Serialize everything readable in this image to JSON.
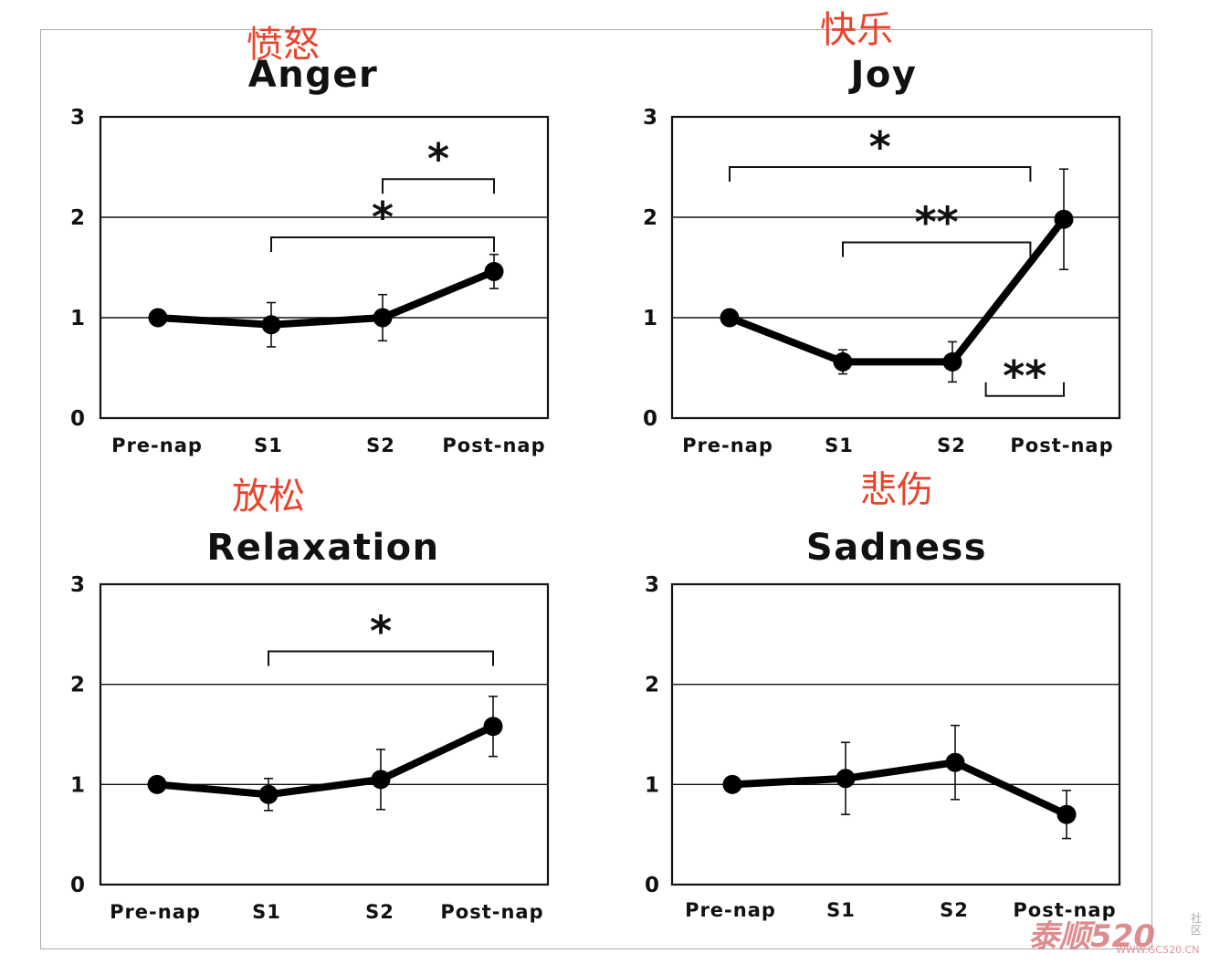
{
  "watermark": {
    "main": "泰顺520",
    "url": "WWW.GC520.CN",
    "tag": "社区"
  },
  "chart_data": [
    {
      "type": "line",
      "title": "Anger",
      "annotation_cn": "愤怒",
      "categories": [
        "Pre-nap",
        "S1",
        "S2",
        "Post-nap"
      ],
      "values": [
        1.0,
        0.93,
        1.0,
        1.46
      ],
      "error": [
        0,
        0.22,
        0.23,
        0.17
      ],
      "ylim": [
        0,
        3
      ],
      "yticks": [
        0,
        1,
        2,
        3
      ],
      "grid_y": [
        1,
        2
      ],
      "significance": [
        {
          "from": 1,
          "to": 3,
          "label": "*",
          "y": 1.8
        },
        {
          "from": 2,
          "to": 3,
          "label": "*",
          "y": 2.38
        }
      ]
    },
    {
      "type": "line",
      "title": "Joy",
      "annotation_cn": "快乐",
      "categories": [
        "Pre-nap",
        "S1",
        "S2",
        "Post-nap"
      ],
      "values": [
        1.0,
        0.56,
        0.56,
        1.98
      ],
      "error": [
        0,
        0.12,
        0.2,
        0.5
      ],
      "ylim": [
        0,
        3
      ],
      "yticks": [
        0,
        1,
        2,
        3
      ],
      "grid_y": [
        1,
        2
      ],
      "significance": [
        {
          "from": 0,
          "to": 2.7,
          "label": "*",
          "y": 2.5
        },
        {
          "from": 1,
          "to": 2.7,
          "label": "**",
          "y": 1.75
        },
        {
          "from": 2.3,
          "to": 3,
          "label": "**",
          "y": 0.22,
          "below": true
        }
      ]
    },
    {
      "type": "line",
      "title": "Relaxation",
      "annotation_cn": "放松",
      "categories": [
        "Pre-nap",
        "S1",
        "S2",
        "Post-nap"
      ],
      "values": [
        1.0,
        0.9,
        1.05,
        1.58
      ],
      "error": [
        0,
        0.16,
        0.3,
        0.3
      ],
      "ylim": [
        0,
        3
      ],
      "yticks": [
        0,
        1,
        2,
        3
      ],
      "grid_y": [
        1,
        2
      ],
      "significance": [
        {
          "from": 1,
          "to": 3,
          "label": "*",
          "y": 2.33
        }
      ]
    },
    {
      "type": "line",
      "title": "Sadness",
      "annotation_cn": "悲伤",
      "categories": [
        "Pre-nap",
        "S1",
        "S2",
        "Post-nap"
      ],
      "values": [
        1.0,
        1.06,
        1.22,
        0.7
      ],
      "error": [
        0,
        0.36,
        0.37,
        0.24
      ],
      "ylim": [
        0,
        3
      ],
      "yticks": [
        0,
        1,
        2,
        3
      ],
      "grid_y": [
        1,
        2
      ],
      "significance": []
    }
  ]
}
